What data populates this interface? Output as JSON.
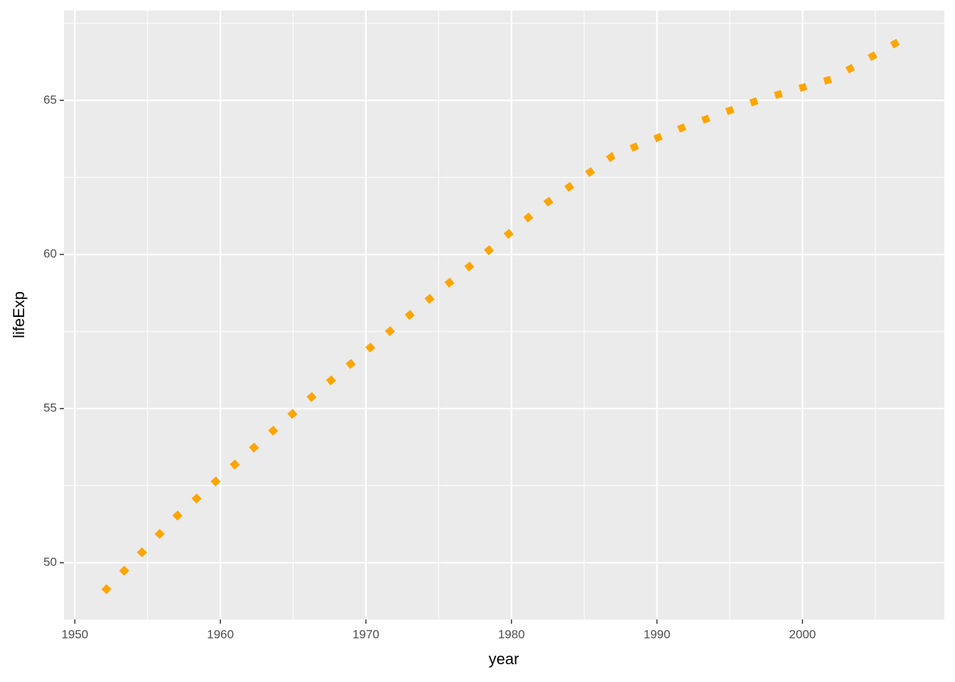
{
  "chart_data": {
    "type": "line",
    "x_label": "year",
    "y_label": "lifeExp",
    "x": [
      1952,
      1957,
      1962,
      1967,
      1972,
      1977,
      1982,
      1987,
      1992,
      1997,
      2002,
      2007
    ],
    "values": [
      49.06,
      51.51,
      53.61,
      55.68,
      57.65,
      59.57,
      61.53,
      63.21,
      64.16,
      65.01,
      65.69,
      67.01
    ],
    "color": "#FFA500",
    "linetype": "dotted",
    "xlim": [
      1949.25,
      2009.75
    ],
    "xticks": [
      1950,
      1960,
      1970,
      1980,
      1990,
      2000
    ],
    "x_minor_ticks": [
      1955,
      1965,
      1975,
      1985,
      1995,
      2005
    ],
    "ylim": [
      48.16,
      67.91
    ],
    "yticks": [
      50,
      55,
      60,
      65
    ],
    "y_minor_ticks": [
      52.5,
      57.5,
      62.5,
      67.5
    ],
    "grid": true
  }
}
